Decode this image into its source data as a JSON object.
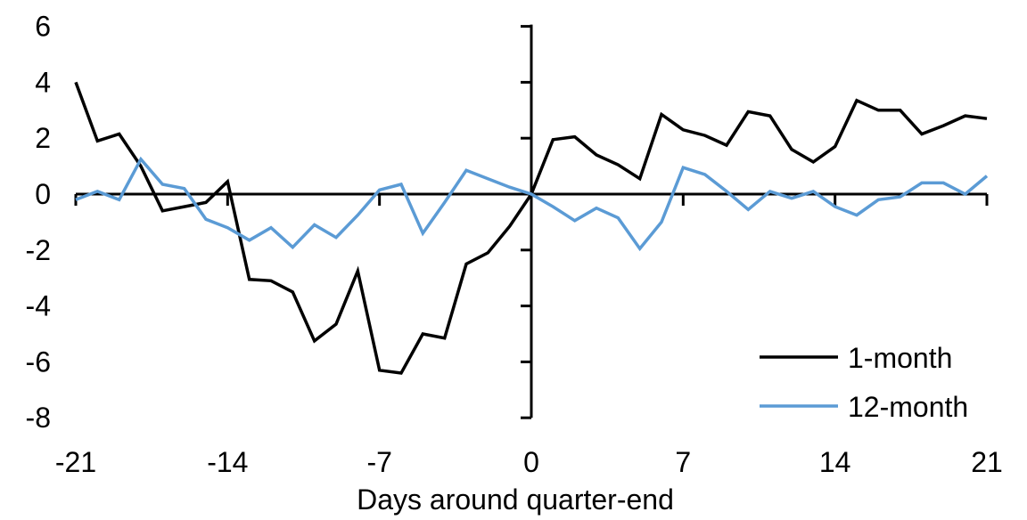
{
  "chart_data": {
    "type": "line",
    "xlabel": "Days around quarter-end",
    "ylabel": "",
    "title": "",
    "xlim": [
      -21,
      21
    ],
    "ylim": [
      -8,
      6
    ],
    "x_ticks": [
      -21,
      -14,
      -7,
      0,
      7,
      14,
      21
    ],
    "y_ticks": [
      6,
      4,
      2,
      0,
      -2,
      -4,
      -6,
      -8
    ],
    "grid": false,
    "legend_position": "lower-right",
    "axes_cross_at_zero": true,
    "x": [
      -21,
      -20,
      -19,
      -18,
      -17,
      -16,
      -15,
      -14,
      -13,
      -12,
      -11,
      -10,
      -9,
      -8,
      -7,
      -6,
      -5,
      -4,
      -3,
      -2,
      -1,
      0,
      1,
      2,
      3,
      4,
      5,
      6,
      7,
      8,
      9,
      10,
      11,
      12,
      13,
      14,
      15,
      16,
      17,
      18,
      19,
      20,
      21
    ],
    "series": [
      {
        "name": "1-month",
        "color": "#000000",
        "values": [
          4.0,
          1.9,
          2.15,
          1.0,
          -0.6,
          -0.45,
          -0.3,
          0.45,
          -3.05,
          -3.1,
          -3.5,
          -5.25,
          -4.65,
          -2.75,
          -6.3,
          -6.4,
          -5.0,
          -5.15,
          -2.5,
          -2.1,
          -1.15,
          0.0,
          1.95,
          2.05,
          1.4,
          1.05,
          0.55,
          2.85,
          2.3,
          2.1,
          1.75,
          2.95,
          2.8,
          1.6,
          1.15,
          1.7,
          3.35,
          3.0,
          3.0,
          2.15,
          2.45,
          2.8,
          2.7
        ]
      },
      {
        "name": "12-month",
        "color": "#5B9BD5",
        "values": [
          -0.2,
          0.1,
          -0.2,
          1.25,
          0.35,
          0.2,
          -0.9,
          -1.2,
          -1.65,
          -1.2,
          -1.9,
          -1.1,
          -1.55,
          -0.75,
          0.15,
          0.35,
          -1.4,
          -0.3,
          0.85,
          0.55,
          0.25,
          0.0,
          -0.45,
          -0.95,
          -0.5,
          -0.85,
          -1.95,
          -1.0,
          0.95,
          0.7,
          0.1,
          -0.55,
          0.1,
          -0.15,
          0.1,
          -0.45,
          -0.75,
          -0.2,
          -0.1,
          0.4,
          0.4,
          0.0,
          0.65
        ]
      }
    ]
  }
}
